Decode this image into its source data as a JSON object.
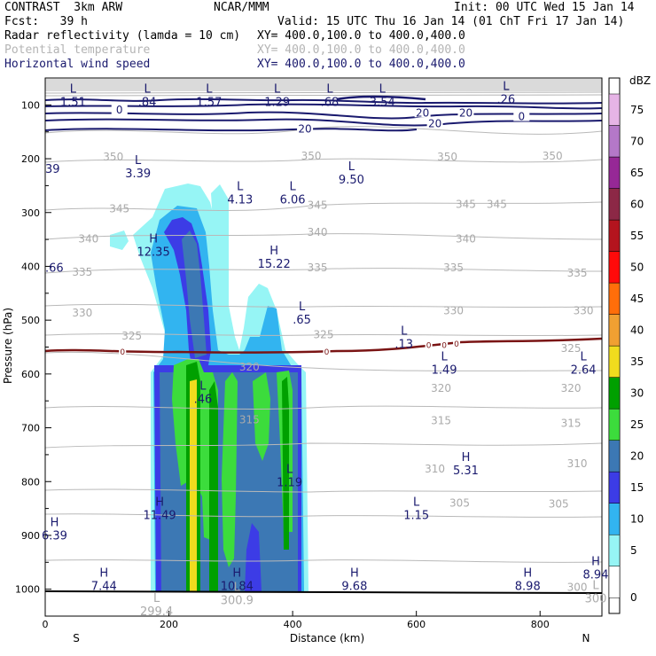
{
  "header": {
    "model": "CONTRAST  3km ARW",
    "org": "NCAR/MMM",
    "init": "Init: 00 UTC Wed 15 Jan 14",
    "fcst": "Fcst:   39 h",
    "valid": "Valid: 15 UTC Thu 16 Jan 14 (01 ChT Fri 17 Jan 14)",
    "fields": [
      {
        "name": "Radar reflectivity (lamda = 10 cm)",
        "xy": "XY= 400.0,100.0 to 400.0,400.0"
      },
      {
        "name": "Potential temperature",
        "xy": "XY= 400.0,100.0 to 400.0,400.0"
      },
      {
        "name": "Horizontal wind speed",
        "xy": "XY= 400.0,100.0 to 400.0,400.0"
      }
    ]
  },
  "chart_data": {
    "type": "contour cross-section",
    "xlabel": "Distance (km)",
    "ylabel": "Pressure (hPa)",
    "xlim": [
      0,
      900
    ],
    "ylim": [
      1050,
      50
    ],
    "x_ticks": [
      0,
      200,
      400,
      600,
      800
    ],
    "y_ticks": [
      100,
      200,
      300,
      400,
      500,
      600,
      700,
      800,
      900,
      1000
    ],
    "x_end_labels": {
      "left": "S",
      "right": "N"
    },
    "colorbar": {
      "unit": "dBZ",
      "levels": [
        "0",
        "5",
        "10",
        "15",
        "20",
        "25",
        "30",
        "35",
        "40",
        "45",
        "50",
        "55",
        "60",
        "65",
        "70",
        "75"
      ],
      "colors": [
        "#ffffff",
        "#96f5f5",
        "#32b4f0",
        "#3c3ce6",
        "#3c78b4",
        "#3cdc3c",
        "#00a000",
        "#f0dc1e",
        "#f0a032",
        "#ff6e0a",
        "#ff0a0a",
        "#b4141e",
        "#8c2846",
        "#962896",
        "#b478c8",
        "#e6b4e6"
      ]
    },
    "theta_labels": [
      {
        "v": "350",
        "x": 110,
        "p": 200
      },
      {
        "v": "350",
        "x": 430,
        "p": 198
      },
      {
        "v": "350",
        "x": 650,
        "p": 200
      },
      {
        "v": "350",
        "x": 820,
        "p": 198
      },
      {
        "v": "345",
        "x": 120,
        "p": 296
      },
      {
        "v": "345",
        "x": 440,
        "p": 290
      },
      {
        "v": "345",
        "x": 680,
        "p": 288
      },
      {
        "v": "345",
        "x": 730,
        "p": 288
      },
      {
        "v": "340",
        "x": 70,
        "p": 352
      },
      {
        "v": "340",
        "x": 440,
        "p": 340
      },
      {
        "v": "340",
        "x": 680,
        "p": 352
      },
      {
        "v": "335",
        "x": 60,
        "p": 414
      },
      {
        "v": "335",
        "x": 440,
        "p": 406
      },
      {
        "v": "335",
        "x": 660,
        "p": 406
      },
      {
        "v": "335",
        "x": 860,
        "p": 416
      },
      {
        "v": "330",
        "x": 60,
        "p": 490
      },
      {
        "v": "330",
        "x": 660,
        "p": 486
      },
      {
        "v": "330",
        "x": 870,
        "p": 486
      },
      {
        "v": "325",
        "x": 140,
        "p": 533
      },
      {
        "v": "325",
        "x": 450,
        "p": 530
      },
      {
        "v": "325",
        "x": 850,
        "p": 556
      },
      {
        "v": "320",
        "x": 330,
        "p": 590
      },
      {
        "v": "320",
        "x": 640,
        "p": 630
      },
      {
        "v": "320",
        "x": 850,
        "p": 630
      },
      {
        "v": "315",
        "x": 330,
        "p": 688
      },
      {
        "v": "315",
        "x": 640,
        "p": 690
      },
      {
        "v": "315",
        "x": 850,
        "p": 695
      },
      {
        "v": "310",
        "x": 630,
        "p": 780
      },
      {
        "v": "310",
        "x": 860,
        "p": 770
      },
      {
        "v": "305",
        "x": 670,
        "p": 843
      },
      {
        "v": "305",
        "x": 830,
        "p": 845
      },
      {
        "v": "300",
        "x": 860,
        "p": 1000
      }
    ],
    "wind_labels": [
      {
        "v": "20",
        "x": 610,
        "p": 118
      },
      {
        "v": "20",
        "x": 680,
        "p": 118
      },
      {
        "v": "20",
        "x": 420,
        "p": 148
      },
      {
        "v": "20",
        "x": 630,
        "p": 138
      },
      {
        "v": "0",
        "x": 120,
        "p": 113
      },
      {
        "v": "0",
        "x": 770,
        "p": 125
      }
    ],
    "freezing_labels": [
      {
        "v": "0",
        "x": 125,
        "p": 561
      },
      {
        "v": "0",
        "x": 455,
        "p": 561
      },
      {
        "v": "0",
        "x": 620,
        "p": 548
      },
      {
        "v": "0",
        "x": 645,
        "p": 548
      },
      {
        "v": "0",
        "x": 665,
        "p": 546
      }
    ],
    "extrema": [
      {
        "t": "L",
        "v": "1.51",
        "x": 45,
        "p": 77
      },
      {
        "t": "L",
        "v": ".84",
        "x": 165,
        "p": 77
      },
      {
        "t": "L",
        "v": "1.57",
        "x": 265,
        "p": 77
      },
      {
        "t": "L",
        "v": "1.29",
        "x": 375,
        "p": 77
      },
      {
        "t": "L",
        "v": ".68",
        "x": 460,
        "p": 77
      },
      {
        "t": "L",
        "v": "3.54",
        "x": 545,
        "p": 77
      },
      {
        "t": "L",
        "v": ".26",
        "x": 745,
        "p": 72
      },
      {
        "t": "L",
        "v": "3.39",
        "x": 150,
        "p": 210
      },
      {
        "t": "L",
        "v": "4.13",
        "x": 315,
        "p": 258
      },
      {
        "t": "L",
        "v": "6.06",
        "x": 400,
        "p": 258
      },
      {
        "t": "L",
        "v": "9.50",
        "x": 495,
        "p": 221
      },
      {
        "t": "H",
        "v": "12.35",
        "x": 175,
        "p": 356
      },
      {
        "t": "H",
        "v": "15.22",
        "x": 370,
        "p": 378
      },
      {
        "t": "L",
        "v": ".65",
        "x": 415,
        "p": 482
      },
      {
        "t": "L",
        "v": ".13",
        "x": 580,
        "p": 527
      },
      {
        "t": "L",
        "v": "1.49",
        "x": 645,
        "p": 575
      },
      {
        "t": "L",
        "v": "2.64",
        "x": 870,
        "p": 575
      },
      {
        "t": "L",
        "v": ".46",
        "x": 255,
        "p": 629
      },
      {
        "t": "H",
        "v": "5.31",
        "x": 680,
        "p": 762
      },
      {
        "t": "L",
        "v": "1.19",
        "x": 395,
        "p": 784
      },
      {
        "t": "H",
        "v": "11.49",
        "x": 185,
        "p": 845
      },
      {
        "t": "L",
        "v": "1.15",
        "x": 600,
        "p": 845
      },
      {
        "t": "H",
        "v": "6.39",
        "x": 15,
        "p": 883
      },
      {
        "t": "H",
        "v": "7.44",
        "x": 95,
        "p": 977
      },
      {
        "t": "H",
        "v": "10.84",
        "x": 310,
        "p": 977
      },
      {
        "t": "H",
        "v": "9.68",
        "x": 500,
        "p": 977
      },
      {
        "t": "H",
        "v": "8.98",
        "x": 780,
        "p": 977
      },
      {
        "t": "H",
        "v": "8.94",
        "x": 890,
        "p": 955
      },
      {
        "t": "L",
        "v": "300.9",
        "x": 310,
        "p": 1003
      },
      {
        "t": "L",
        "v": "299.4",
        "x": 180,
        "p": 1024
      },
      {
        "t": "L",
        "v": "300",
        "x": 890,
        "p": 1000
      }
    ],
    "edge_values": [
      {
        "v": "39",
        "x": 0,
        "p": 226
      },
      {
        "v": ".66",
        "x": 0,
        "p": 410
      }
    ]
  }
}
